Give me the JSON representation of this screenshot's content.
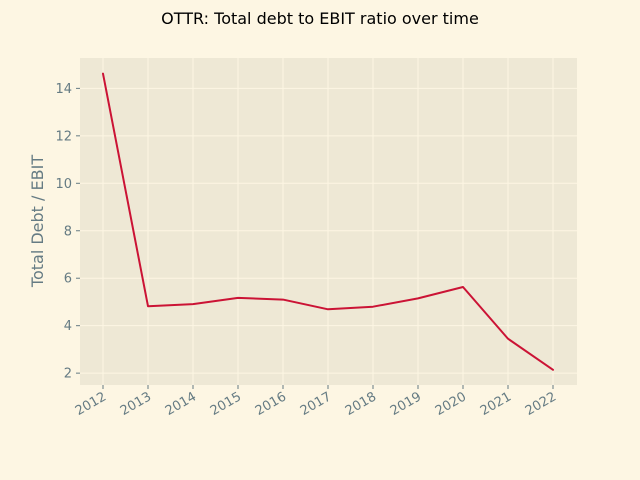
{
  "colors": {
    "page_background": "#fdf6e3",
    "plot_background": "#eee8d5",
    "grid": "#fdf6e3",
    "tick": "#657b83",
    "line": "#cb1335"
  },
  "chart_data": {
    "type": "line",
    "title": "OTTR: Total debt to EBIT ratio over time",
    "xlabel": "",
    "ylabel": "Total Debt / EBIT",
    "x": [
      "2012",
      "2013",
      "2014",
      "2015",
      "2016",
      "2017",
      "2018",
      "2019",
      "2020",
      "2021",
      "2022"
    ],
    "series": [
      {
        "values": [
          14.62,
          4.82,
          4.91,
          5.17,
          5.1,
          4.69,
          4.8,
          5.15,
          5.63,
          3.45,
          2.14
        ]
      }
    ],
    "ylim": [
      1.5,
      15.28
    ],
    "yticks": [
      2,
      4,
      6,
      8,
      10,
      12,
      14
    ],
    "grid": true,
    "legend": "none"
  }
}
